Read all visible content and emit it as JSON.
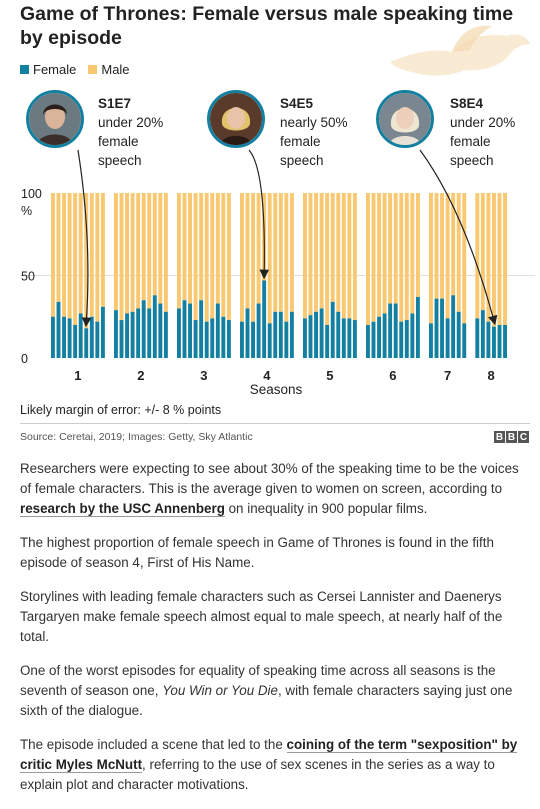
{
  "title": "Game of Thrones: Female versus male speaking time by episode",
  "legend": {
    "female": "Female",
    "male": "Male"
  },
  "colors": {
    "female": "#1380A1",
    "male": "#FAC870",
    "arrow": "#222222",
    "portrait_ring": "#1380A1"
  },
  "callouts": [
    {
      "code": "S1E7",
      "line1": "under 20%",
      "line2": "female",
      "line3": "speech",
      "icon": "jon-snow-portrait"
    },
    {
      "code": "S4E5",
      "line1": "nearly 50%",
      "line2": "female",
      "line3": "speech",
      "icon": "cersei-portrait"
    },
    {
      "code": "S8E4",
      "line1": "under 20%",
      "line2": "female",
      "line3": "speech",
      "icon": "daenerys-portrait"
    }
  ],
  "margin_note": "Likely margin of error: +/- 8 % points",
  "source": "Source: Ceretai, 2019; Images: Getty, Sky Atlantic",
  "bbc": [
    "B",
    "B",
    "C"
  ],
  "article": {
    "p1_before": "Researchers were expecting to see about 30% of the speaking time to be the voices of female characters. This is the average given to women on screen, according to ",
    "p1_link": "research by the USC Annenberg",
    "p1_after": " on inequality in 900 popular films.",
    "p2": "The highest proportion of female speech in Game of Thrones is found in the fifth episode of season 4, First of His Name.",
    "p3": "Storylines with leading female characters such as Cersei Lannister and Daenerys Targaryen make female speech almost equal to male speech, at nearly half of the total.",
    "p4_before": "One of the worst episodes for equality of speaking time across all seasons is the seventh of season one, ",
    "p4_italic": "You Win or You Die",
    "p4_after": ", with female characters saying just one sixth of the dialogue.",
    "p5_before": "The episode included a scene that led to the ",
    "p5_link": "coining of the term \"sexposition\" by critic Myles McNutt",
    "p5_after": ", referring to the use of sex scenes in the series as a way to explain plot and character motivations."
  },
  "chart_data": {
    "type": "bar",
    "stacked": true,
    "xlabel": "Seasons",
    "ylabel": "%",
    "ylim": [
      0,
      100
    ],
    "yticks": [
      0,
      50,
      100
    ],
    "seasons": [
      {
        "label": "1",
        "female": [
          25,
          34,
          25,
          24,
          20,
          27,
          18,
          25,
          22,
          31
        ]
      },
      {
        "label": "2",
        "female": [
          29,
          23,
          27,
          28,
          30,
          35,
          30,
          38,
          33,
          28
        ]
      },
      {
        "label": "3",
        "female": [
          30,
          35,
          33,
          23,
          35,
          22,
          24,
          33,
          25,
          23
        ]
      },
      {
        "label": "4",
        "female": [
          22,
          30,
          22,
          33,
          47,
          21,
          28,
          28,
          22,
          28
        ]
      },
      {
        "label": "5",
        "female": [
          24,
          26,
          28,
          30,
          20,
          34,
          28,
          24,
          24,
          23
        ]
      },
      {
        "label": "6",
        "female": [
          20,
          22,
          25,
          27,
          33,
          33,
          22,
          23,
          27,
          37
        ]
      },
      {
        "label": "7",
        "female": [
          21,
          36,
          36,
          24,
          38,
          28,
          21
        ]
      },
      {
        "label": "8",
        "female": [
          24,
          29,
          22,
          19,
          20,
          20
        ]
      }
    ],
    "annotations": [
      {
        "label": "S1E7",
        "season": 1,
        "episode": 7,
        "female": 18
      },
      {
        "label": "S4E5",
        "season": 4,
        "episode": 5,
        "female": 47
      },
      {
        "label": "S8E4",
        "season": 8,
        "episode": 4,
        "female": 19
      }
    ]
  }
}
